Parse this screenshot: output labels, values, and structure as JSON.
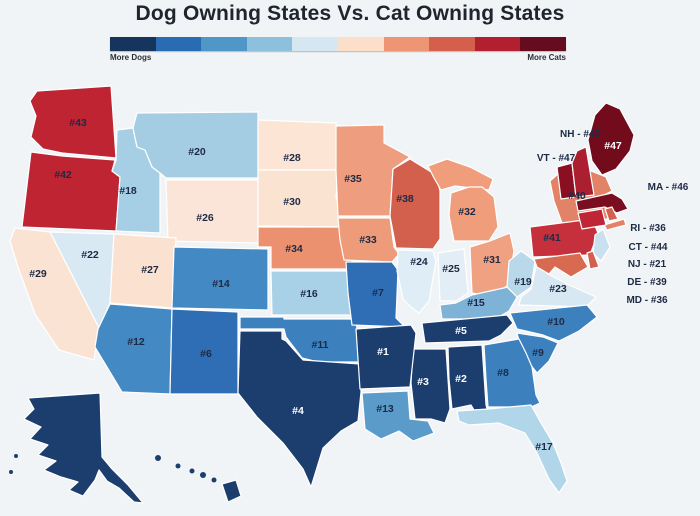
{
  "title": "Dog Owning States Vs. Cat Owning States",
  "legend": {
    "more_dogs": "More Dogs",
    "more_cats": "More Cats",
    "colors": [
      "#16355d",
      "#2a6cb3",
      "#4f97c6",
      "#8cc0dd",
      "#d5e7f1",
      "#fbdfca",
      "#ee9674",
      "#d45f4c",
      "#b2202f",
      "#650c1e"
    ]
  },
  "map": {
    "border_color": "#ffffff",
    "background": "#f1f4f6"
  },
  "dark_label_color": "#1e2a45",
  "states": {
    "WA": {
      "label": "#43",
      "color": "#bf2433",
      "label_color": "#1e2a45"
    },
    "OR": {
      "label": "#42",
      "color": "#bf2433",
      "label_color": "#1e2a45"
    },
    "CA": {
      "label": "#29",
      "color": "#fae3d3",
      "label_color": "#1e2a45"
    },
    "NV": {
      "label": "#22",
      "color": "#d9e9f3",
      "label_color": "#1e2a45"
    },
    "ID": {
      "label": "#18",
      "color": "#a6cfe5",
      "label_color": "#1e2a45"
    },
    "UT": {
      "label": "#27",
      "color": "#fbe1cf",
      "label_color": "#1e2a45"
    },
    "AZ": {
      "label": "#12",
      "color": "#4389c3",
      "label_color": "#1e2a45"
    },
    "MT": {
      "label": "#20",
      "color": "#a4cde4",
      "label_color": "#1e2a45"
    },
    "WY": {
      "label": "#26",
      "color": "#fae5d8",
      "label_color": "#1e2a45"
    },
    "CO": {
      "label": "#14",
      "color": "#4389c3",
      "label_color": "#1e2a45"
    },
    "NM": {
      "label": "#6",
      "color": "#2f6eb5",
      "label_color": "#1e2a45"
    },
    "ND": {
      "label": "#28",
      "color": "#fce5d5",
      "label_color": "#1e2a45"
    },
    "SD": {
      "label": "#30",
      "color": "#fbe3d2",
      "label_color": "#1e2a45"
    },
    "NE": {
      "label": "#34",
      "color": "#eb9170",
      "label_color": "#1e2a45"
    },
    "KS": {
      "label": "#16",
      "color": "#a8d0e6",
      "label_color": "#1e2a45"
    },
    "OK": {
      "label": "#11",
      "color": "#3c80be",
      "label_color": "#1e2a45"
    },
    "TX": {
      "label": "#4",
      "color": "#1c3e6e",
      "label_color": "#ffffff"
    },
    "MN": {
      "label": "#35",
      "color": "#ee9e7e",
      "label_color": "#1e2a45"
    },
    "IA": {
      "label": "#33",
      "color": "#ed9b79",
      "label_color": "#1e2a45"
    },
    "MO": {
      "label": "#7",
      "color": "#2f6eb5",
      "label_color": "#1e2a45"
    },
    "AR": {
      "label": "#1",
      "color": "#1c3e6e",
      "label_color": "#ffffff"
    },
    "LA": {
      "label": "#13",
      "color": "#5b9bca",
      "label_color": "#1e2a45"
    },
    "WI": {
      "label": "#38",
      "color": "#d2604d",
      "label_color": "#1e2a45"
    },
    "IL": {
      "label": "#24",
      "color": "#dfedf6",
      "label_color": "#1e2a45"
    },
    "MI": {
      "label": "#32",
      "color": "#ef9d7b",
      "label_color": "#1e2a45"
    },
    "IN": {
      "label": "#25",
      "color": "#e2edf5",
      "label_color": "#1e2a45"
    },
    "OH": {
      "label": "#31",
      "color": "#f0a181",
      "label_color": "#1e2a45"
    },
    "KY": {
      "label": "#15",
      "color": "#7fb2d7",
      "label_color": "#1e2a45"
    },
    "TN": {
      "label": "#5",
      "color": "#1c3e6e",
      "label_color": "#ffffff"
    },
    "MS": {
      "label": "#3",
      "color": "#1c3e6e",
      "label_color": "#ffffff"
    },
    "AL": {
      "label": "#2",
      "color": "#1c3e6e",
      "label_color": "#ffffff"
    },
    "GA": {
      "label": "#8",
      "color": "#3c80be",
      "label_color": "#1e2a45"
    },
    "FL": {
      "label": "#17",
      "color": "#b2d6e9",
      "label_color": "#1e2a45"
    },
    "SC": {
      "label": "#9",
      "color": "#3c80be",
      "label_color": "#1e2a45"
    },
    "NC": {
      "label": "#10",
      "color": "#3c80be",
      "label_color": "#1e2a45"
    },
    "VA": {
      "label": "#23",
      "color": "#d8e8f2",
      "label_color": "#1e2a45"
    },
    "WV": {
      "label": "#19",
      "color": "#b9d9ea",
      "label_color": "#1e2a45"
    },
    "PA": {
      "label": "#41",
      "color": "#c5303c",
      "label_color": "#1e2a45"
    },
    "NY": {
      "label": "#40",
      "color": "#e28368",
      "label_color": "#1e2a45"
    },
    "ME": {
      "label": "#47",
      "color": "#720c1d",
      "label_color": "#ffffff"
    },
    "VT": {
      "color": "#8a1021"
    },
    "NH": {
      "color": "#ab1f30"
    },
    "MA": {
      "color": "#7a0e20"
    },
    "CT": {
      "color": "#bf2635"
    },
    "RI": {
      "color": "#d5604d"
    },
    "NJ": {
      "color": "#c9e1ef"
    },
    "DE": {
      "color": "#d2604d"
    },
    "MD": {
      "color": "#d96a52"
    },
    "AK": {
      "color": "#1c3e6e"
    },
    "HI": {
      "color": "#1c3e6e"
    }
  },
  "callouts": {
    "NH": "NH - #45",
    "VT": "VT - #47",
    "MA": "MA - #46",
    "RI": "RI - #36",
    "CT": "CT - #44",
    "NJ": "NJ - #21",
    "DE": "DE - #39",
    "MD": "MD - #36"
  }
}
